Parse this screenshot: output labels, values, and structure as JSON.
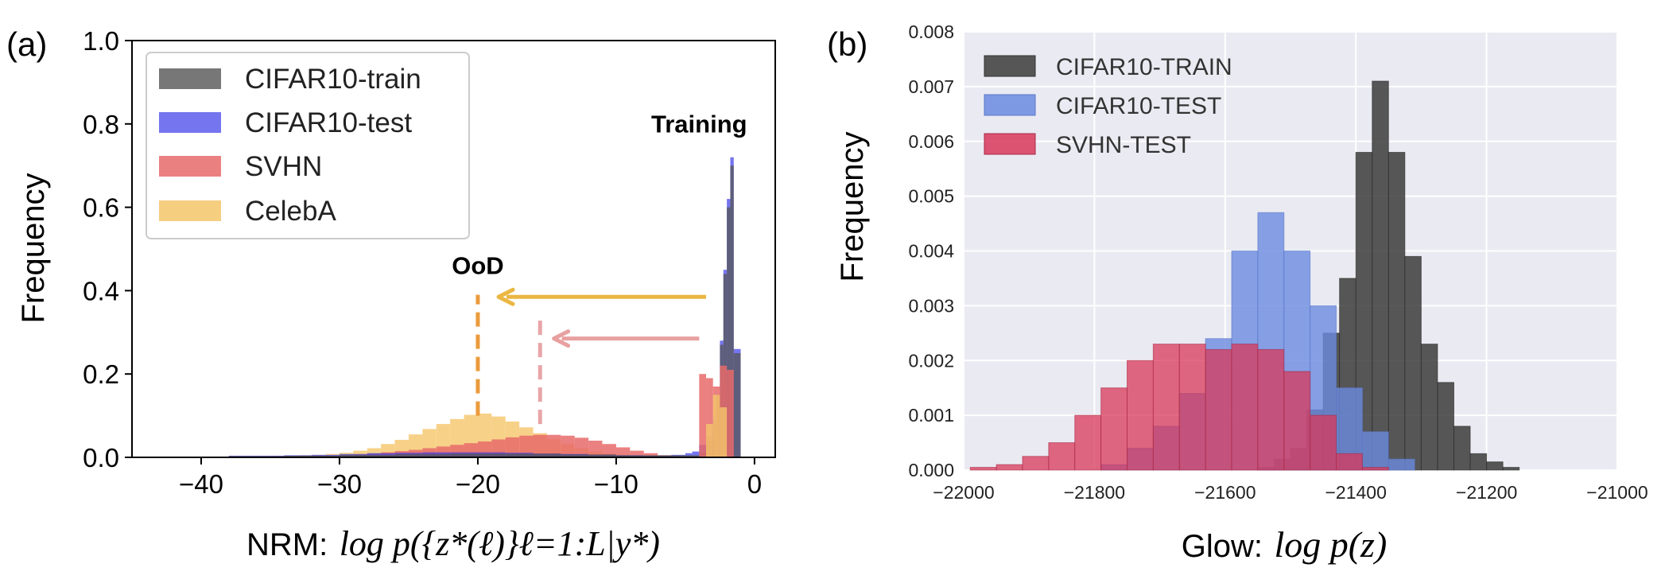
{
  "panel_labels": {
    "a": "(a)",
    "b": "(b)"
  },
  "colors": {
    "cifar_train": "#555555",
    "cifar_test": "#3a3ae8",
    "svhn": "#e86a6a",
    "celeba": "#f5c66a",
    "arrow_celeba": "#ebb742",
    "arrow_svhn": "#e8a0a0",
    "ood_line_celeba": "#eb9b3c",
    "ood_line_svhn": "#e8a5a8",
    "glow_bg": "#eaeaf2",
    "glow_train": "#3c3c3c",
    "glow_test": "#6b8be0",
    "glow_svhn": "#d8385a"
  },
  "chart_data": [
    {
      "id": "a",
      "type": "bar",
      "subtype": "histogram",
      "title": "",
      "xlabel_prefix": "NRM:",
      "xlabel_math": "log p({z*(ℓ)}ℓ=1:L|y*)",
      "ylabel": "Frequency",
      "xlim": [
        -45,
        1.5
      ],
      "ylim": [
        0,
        1.0
      ],
      "xticks": [
        -40,
        -30,
        -20,
        -10,
        0
      ],
      "xtick_labels": [
        "−40",
        "−30",
        "−20",
        "−10",
        "0"
      ],
      "yticks": [
        0.0,
        0.2,
        0.4,
        0.6,
        0.8,
        1.0
      ],
      "ytick_labels": [
        "0.0",
        "0.2",
        "0.4",
        "0.6",
        "0.8",
        "1.0"
      ],
      "legend_position": "upper-left",
      "annotations": [
        {
          "text": "Training",
          "x": -4,
          "y": 0.78
        },
        {
          "text": "OoD",
          "x": -20,
          "y": 0.44
        }
      ],
      "arrows": [
        {
          "series": "CelebA",
          "from": [
            -3.5,
            0.385
          ],
          "to": [
            -18.5,
            0.385
          ]
        },
        {
          "series": "SVHN",
          "from": [
            -4,
            0.285
          ],
          "to": [
            -14.5,
            0.285
          ]
        }
      ],
      "vlines": [
        {
          "series": "CelebA",
          "x": -20,
          "ymin": 0.1,
          "ymax": 0.39
        },
        {
          "series": "SVHN",
          "x": -15.5,
          "ymin": 0.08,
          "ymax": 0.33
        }
      ],
      "bin_width": 1,
      "series": [
        {
          "name": "CelebA",
          "color_key": "celeba",
          "x": [
            -37,
            -36,
            -35,
            -34,
            -33,
            -32,
            -31,
            -30,
            -29,
            -28,
            -27,
            -26,
            -25,
            -24,
            -23,
            -22,
            -21,
            -20,
            -19,
            -18,
            -17,
            -16,
            -15,
            -14,
            -13,
            -12,
            -11,
            -10,
            -9,
            -8,
            -7,
            -6,
            -5,
            -4
          ],
          "values": [
            0.002,
            0.002,
            0.003,
            0.004,
            0.005,
            0.006,
            0.008,
            0.011,
            0.016,
            0.022,
            0.032,
            0.042,
            0.055,
            0.068,
            0.08,
            0.092,
            0.102,
            0.105,
            0.098,
            0.086,
            0.072,
            0.058,
            0.044,
            0.032,
            0.022,
            0.014,
            0.009,
            0.006,
            0.004,
            0.003,
            0.002,
            0.002,
            0.001,
            0.001
          ]
        },
        {
          "name": "SVHN",
          "color_key": "svhn",
          "x": [
            -36,
            -35,
            -34,
            -33,
            -32,
            -31,
            -30,
            -29,
            -28,
            -27,
            -26,
            -25,
            -24,
            -23,
            -22,
            -21,
            -20,
            -19,
            -18,
            -17,
            -16,
            -15,
            -14,
            -13,
            -12,
            -11,
            -10,
            -9,
            -8,
            -7,
            -6
          ],
          "values": [
            0.001,
            0.001,
            0.002,
            0.002,
            0.003,
            0.004,
            0.005,
            0.007,
            0.009,
            0.012,
            0.015,
            0.018,
            0.022,
            0.026,
            0.03,
            0.034,
            0.038,
            0.043,
            0.048,
            0.052,
            0.054,
            0.054,
            0.052,
            0.047,
            0.04,
            0.032,
            0.024,
            0.016,
            0.01,
            0.005,
            0.002
          ]
        },
        {
          "name": "CIFAR10-test",
          "color_key": "cifar_test",
          "x": [
            -38,
            -36,
            -34,
            -32,
            -30,
            -28,
            -26,
            -24,
            -22,
            -20,
            -18,
            -16,
            -14,
            -12,
            -10,
            -8,
            -6,
            -5,
            -4.5,
            -4,
            -3.5,
            -3,
            -2.75,
            -2.5,
            -2.25,
            -2,
            -1.75,
            -1.5
          ],
          "values": [
            0.004,
            0.004,
            0.005,
            0.006,
            0.008,
            0.01,
            0.011,
            0.012,
            0.012,
            0.012,
            0.011,
            0.009,
            0.008,
            0.006,
            0.005,
            0.004,
            0.006,
            0.01,
            0.014,
            0.03,
            0.05,
            0.09,
            0.15,
            0.28,
            0.45,
            0.62,
            0.72,
            0.26
          ]
        },
        {
          "name": "CIFAR10-train",
          "color_key": "cifar_train",
          "x": [
            -38,
            -34,
            -30,
            -26,
            -22,
            -18,
            -14,
            -10,
            -6,
            -4,
            -3.5,
            -3,
            -2.75,
            -2.5,
            -2.25,
            -2,
            -1.75,
            -1.5
          ],
          "values": [
            0.003,
            0.004,
            0.006,
            0.008,
            0.009,
            0.009,
            0.007,
            0.005,
            0.005,
            0.012,
            0.04,
            0.08,
            0.14,
            0.27,
            0.44,
            0.6,
            0.7,
            0.25
          ]
        },
        {
          "name": "SVHN-peak",
          "color_key": "svhn",
          "legend": false,
          "x": [
            -4,
            -3.5,
            -3,
            -2.5,
            -2
          ],
          "values": [
            0.2,
            0.19,
            0.17,
            0.22,
            0.21
          ]
        },
        {
          "name": "CelebA-peak",
          "color_key": "celeba",
          "legend": false,
          "x": [
            -3.5,
            -3,
            -2.5
          ],
          "values": [
            0.08,
            0.15,
            0.12
          ]
        }
      ],
      "legend": [
        "CIFAR10-train",
        "CIFAR10-test",
        "SVHN",
        "CelebA"
      ]
    },
    {
      "id": "b",
      "type": "bar",
      "subtype": "histogram",
      "title": "",
      "xlabel_prefix": "Glow:",
      "xlabel_math": "log p(z)",
      "ylabel": "Frequency",
      "xlim": [
        -22000,
        -21000
      ],
      "ylim": [
        0,
        0.008
      ],
      "xticks": [
        -22000,
        -21800,
        -21600,
        -21400,
        -21200,
        -21000
      ],
      "xtick_labels": [
        "−22000",
        "−21800",
        "−21600",
        "−21400",
        "−21200",
        "−21000"
      ],
      "yticks": [
        0,
        0.001,
        0.002,
        0.003,
        0.004,
        0.005,
        0.006,
        0.007,
        0.008
      ],
      "ytick_labels": [
        "0.000",
        "0.001",
        "0.002",
        "0.003",
        "0.004",
        "0.005",
        "0.006",
        "0.007",
        "0.008"
      ],
      "grid": true,
      "legend_position": "upper-left",
      "series": [
        {
          "name": "CIFAR10-TRAIN",
          "color_key": "glow_train",
          "bin_width": 25,
          "x0": -21550,
          "values": [
            5e-05,
            0.0002,
            0.0004,
            0.0011,
            0.0025,
            0.0035,
            0.0058,
            0.0071,
            0.0058,
            0.0039,
            0.0023,
            0.0016,
            0.0008,
            0.0003,
            0.00015,
            5e-05
          ]
        },
        {
          "name": "CIFAR10-TEST",
          "color_key": "glow_test",
          "bin_width": 40,
          "x0": -21790,
          "values": [
            0.0001,
            0.0004,
            0.0008,
            0.0014,
            0.0024,
            0.004,
            0.0047,
            0.004,
            0.003,
            0.0015,
            0.0007,
            0.0002
          ]
        },
        {
          "name": "SVHN-TEST",
          "color_key": "glow_svhn",
          "bin_width": 40,
          "x0": -21990,
          "values": [
            5e-05,
            0.0001,
            0.00025,
            0.0005,
            0.001,
            0.0015,
            0.002,
            0.0023,
            0.0023,
            0.0022,
            0.0023,
            0.0022,
            0.0018,
            0.001,
            0.0003,
            5e-05
          ]
        }
      ],
      "legend": [
        "CIFAR10-TRAIN",
        "CIFAR10-TEST",
        "SVHN-TEST"
      ]
    }
  ]
}
